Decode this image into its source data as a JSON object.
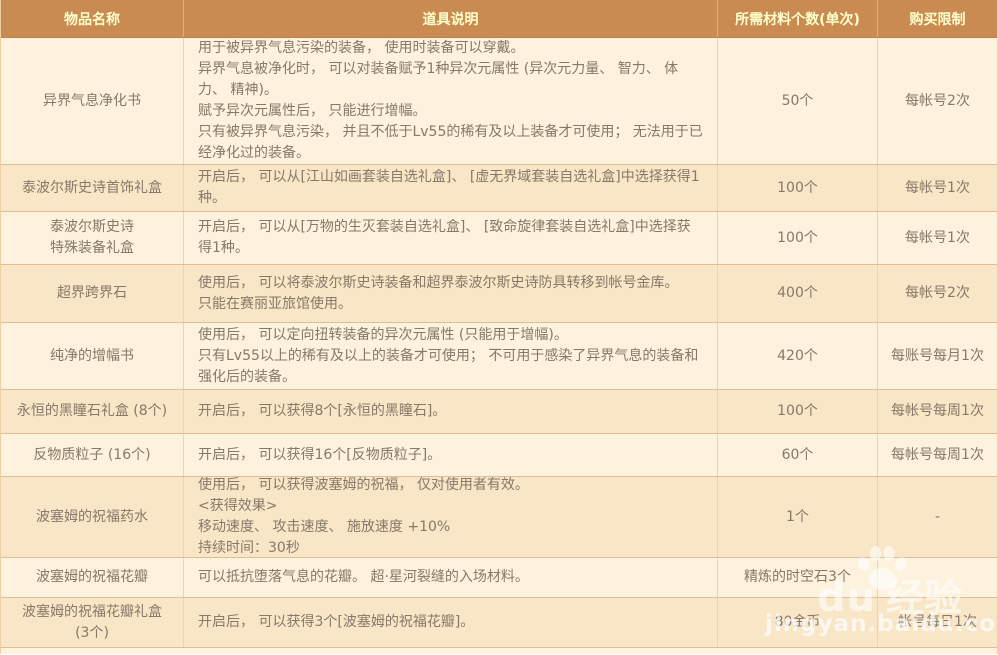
{
  "table": {
    "headers": [
      "物品名称",
      "道具说明",
      "所需材料个数(单次)",
      "购买限制"
    ],
    "rows": [
      {
        "name_lines": [
          "异界气息净化书"
        ],
        "desc": [
          "用于被异界气息污染的装备， 使用时装备可以穿戴。",
          "异界气息被净化时， 可以对装备赋予1种异次元属性 (异次元力量、 智力、 体力、 精神)。",
          "赋予异次元属性后， 只能进行增幅。",
          "只有被异界气息污染， 并且不低于Lv55的稀有及以上装备才可使用； 无法用于已经净化过的装备。"
        ],
        "count": "50个",
        "limit": "每帐号2次"
      },
      {
        "name_lines": [
          "泰波尔斯史诗首饰礼盒"
        ],
        "desc": [
          "开启后， 可以从[江山如画套装自选礼盒]、 [虚无界域套装自选礼盒]中选择获得1种。"
        ],
        "count": "100个",
        "limit": "每帐号1次"
      },
      {
        "name_lines": [
          "泰波尔斯史诗",
          "特殊装备礼盒"
        ],
        "desc": [
          "开启后， 可以从[万物的生灭套装自选礼盒]、 [致命旋律套装自选礼盒]中选择获得1种。"
        ],
        "count": "100个",
        "limit": "每帐号1次"
      },
      {
        "name_lines": [
          "超界跨界石"
        ],
        "desc": [
          "使用后， 可以将泰波尔斯史诗装备和超界泰波尔斯史诗防具转移到帐号金库。",
          "只能在赛丽亚旅馆使用。"
        ],
        "count": "400个",
        "limit": "每帐号2次"
      },
      {
        "name_lines": [
          "纯净的增幅书"
        ],
        "desc": [
          "使用后， 可以定向扭转装备的异次元属性 (只能用于增幅)。",
          "只有Lv55以上的稀有及以上的装备才可使用； 不可用于感染了异界气息的装备和强化后的装备。"
        ],
        "count": "420个",
        "limit": "每账号每月1次"
      },
      {
        "name_lines": [
          "永恒的黑瞳石礼盒 (8个)"
        ],
        "desc": [
          "开启后， 可以获得8个[永恒的黑瞳石]。"
        ],
        "count": "100个",
        "limit": "每帐号每周1次"
      },
      {
        "name_lines": [
          "反物质粒子 (16个)"
        ],
        "desc": [
          "开启后， 可以获得16个[反物质粒子]。"
        ],
        "count": "60个",
        "limit": "每帐号每周1次"
      },
      {
        "name_lines": [
          "波塞姆的祝福药水"
        ],
        "desc": [
          "使用后， 可以获得波塞姆的祝福， 仅对使用者有效。",
          "<获得效果>",
          "移动速度、 攻击速度、 施放速度 +10%",
          "持续时间：30秒"
        ],
        "count": "1个",
        "limit": "-"
      },
      {
        "name_lines": [
          "波塞姆的祝福花瓣"
        ],
        "desc": [
          "可以抵抗堕落气息的花瓣。 超·星河裂缝的入场材料。"
        ],
        "count": "精炼的时空石3个",
        "limit": ""
      },
      {
        "name_lines": [
          "波塞姆的祝福花瓣礼盒",
          "(3个)"
        ],
        "desc": [
          "开启后， 可以获得3个[波塞姆的祝福花瓣]。"
        ],
        "count": "80金币",
        "limit": "帐号每日1次"
      }
    ]
  },
  "watermark": {
    "brand_latin": "du",
    "brand_cn": "经验",
    "url": "jingyan.baidu.com"
  }
}
